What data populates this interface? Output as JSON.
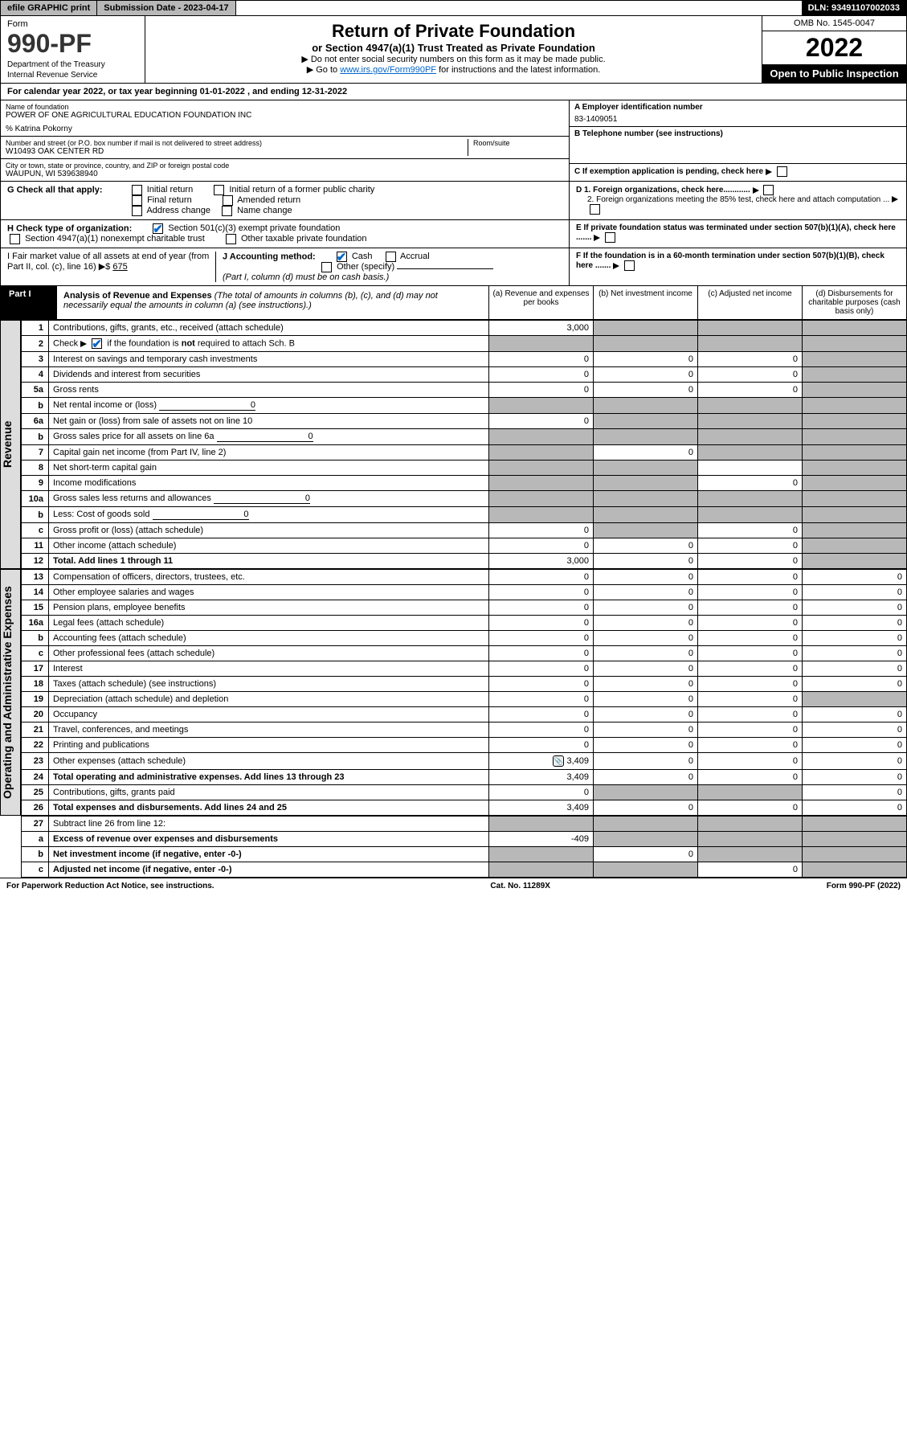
{
  "top": {
    "efile": "efile GRAPHIC print",
    "subdate_label": "Submission Date - 2023-04-17",
    "dln": "DLN: 93491107002033"
  },
  "header": {
    "form_word": "Form",
    "form_num": "990-PF",
    "dept": "Department of the Treasury",
    "irs": "Internal Revenue Service",
    "title": "Return of Private Foundation",
    "subtitle": "or Section 4947(a)(1) Trust Treated as Private Foundation",
    "note1": "▶ Do not enter social security numbers on this form as it may be made public.",
    "note2_pre": "▶ Go to ",
    "note2_link": "www.irs.gov/Form990PF",
    "note2_post": " for instructions and the latest information.",
    "omb": "OMB No. 1545-0047",
    "year": "2022",
    "open": "Open to Public Inspection"
  },
  "calendar": "For calendar year 2022, or tax year beginning 01-01-2022                        , and ending 12-31-2022",
  "info": {
    "name_label": "Name of foundation",
    "name": "POWER OF ONE AGRICULTURAL EDUCATION FOUNDATION INC",
    "attn": "% Katrina Pokorny",
    "addr_label": "Number and street (or P.O. box number if mail is not delivered to street address)",
    "addr": "W10493 OAK CENTER RD",
    "room_label": "Room/suite",
    "city_label": "City or town, state or province, country, and ZIP or foreign postal code",
    "city": "WAUPUN, WI  539638940",
    "ein_label": "A Employer identification number",
    "ein": "83-1409051",
    "tel_label": "B Telephone number (see instructions)",
    "c_label": "C If exemption application is pending, check here",
    "d1": "D 1. Foreign organizations, check here............",
    "d2": "2. Foreign organizations meeting the 85% test, check here and attach computation ...",
    "e_label": "E  If private foundation status was terminated under section 507(b)(1)(A), check here .......",
    "f_label": "F  If the foundation is in a 60-month termination under section 507(b)(1)(B), check here .......",
    "g_label": "G Check all that apply:",
    "g_opts": [
      "Initial return",
      "Initial return of a former public charity",
      "Final return",
      "Amended return",
      "Address change",
      "Name change"
    ],
    "h_label": "H Check type of organization:",
    "h1": "Section 501(c)(3) exempt private foundation",
    "h2": "Section 4947(a)(1) nonexempt charitable trust",
    "h3": "Other taxable private foundation",
    "i_label": "I Fair market value of all assets at end of year (from Part II, col. (c), line 16) ▶$",
    "i_val": "675",
    "j_label": "J Accounting method:",
    "j_cash": "Cash",
    "j_accr": "Accrual",
    "j_other": "Other (specify)",
    "j_note": "(Part I, column (d) must be on cash basis.)"
  },
  "part1": {
    "label": "Part I",
    "title": "Analysis of Revenue and Expenses",
    "title_note": " (The total of amounts in columns (b), (c), and (d) may not necessarily equal the amounts in column (a) (see instructions).)",
    "col_a": "(a)   Revenue and expenses per books",
    "col_b": "(b)   Net investment income",
    "col_c": "(c)   Adjusted net income",
    "col_d": "(d)   Disbursements for charitable purposes (cash basis only)"
  },
  "sections": {
    "revenue": "Revenue",
    "expenses": "Operating and Administrative Expenses"
  },
  "rows": [
    {
      "n": "1",
      "d": "Contributions, gifts, grants, etc., received (attach schedule)",
      "a": "3,000",
      "b": "",
      "c": "",
      "dd": "",
      "bs": true,
      "cs": true,
      "ds": true
    },
    {
      "n": "2",
      "d": "Check ▶ ☑ if the foundation is not required to attach Sch. B",
      "a": "",
      "b": "",
      "c": "",
      "dd": "",
      "as": true,
      "bs": true,
      "cs": true,
      "ds": true,
      "chk": true
    },
    {
      "n": "3",
      "d": "Interest on savings and temporary cash investments",
      "a": "0",
      "b": "0",
      "c": "0",
      "dd": "",
      "ds": true
    },
    {
      "n": "4",
      "d": "Dividends and interest from securities",
      "a": "0",
      "b": "0",
      "c": "0",
      "dd": "",
      "ds": true
    },
    {
      "n": "5a",
      "d": "Gross rents",
      "a": "0",
      "b": "0",
      "c": "0",
      "dd": "",
      "ds": true
    },
    {
      "n": "b",
      "d": "Net rental income or (loss)",
      "a": "",
      "b": "",
      "c": "",
      "dd": "",
      "inline": "0",
      "as": true,
      "bs": true,
      "cs": true,
      "ds": true
    },
    {
      "n": "6a",
      "d": "Net gain or (loss) from sale of assets not on line 10",
      "a": "0",
      "b": "",
      "c": "",
      "dd": "",
      "bs": true,
      "cs": true,
      "ds": true
    },
    {
      "n": "b",
      "d": "Gross sales price for all assets on line 6a",
      "a": "",
      "b": "",
      "c": "",
      "dd": "",
      "inline": "0",
      "as": true,
      "bs": true,
      "cs": true,
      "ds": true
    },
    {
      "n": "7",
      "d": "Capital gain net income (from Part IV, line 2)",
      "a": "",
      "b": "0",
      "c": "",
      "dd": "",
      "as": true,
      "cs": true,
      "ds": true
    },
    {
      "n": "8",
      "d": "Net short-term capital gain",
      "a": "",
      "b": "",
      "c": "",
      "dd": "",
      "as": true,
      "bs": true,
      "ds": true
    },
    {
      "n": "9",
      "d": "Income modifications",
      "a": "",
      "b": "",
      "c": "0",
      "dd": "",
      "as": true,
      "bs": true,
      "ds": true
    },
    {
      "n": "10a",
      "d": "Gross sales less returns and allowances",
      "a": "",
      "b": "",
      "c": "",
      "dd": "",
      "inline": "0",
      "as": true,
      "bs": true,
      "cs": true,
      "ds": true
    },
    {
      "n": "b",
      "d": "Less: Cost of goods sold",
      "a": "",
      "b": "",
      "c": "",
      "dd": "",
      "inline": "0",
      "as": true,
      "bs": true,
      "cs": true,
      "ds": true
    },
    {
      "n": "c",
      "d": "Gross profit or (loss) (attach schedule)",
      "a": "0",
      "b": "",
      "c": "0",
      "dd": "",
      "bs": true,
      "ds": true
    },
    {
      "n": "11",
      "d": "Other income (attach schedule)",
      "a": "0",
      "b": "0",
      "c": "0",
      "dd": "",
      "ds": true
    },
    {
      "n": "12",
      "d": "Total. Add lines 1 through 11",
      "a": "3,000",
      "b": "0",
      "c": "0",
      "dd": "",
      "bold": true,
      "ds": true
    }
  ],
  "exp_rows": [
    {
      "n": "13",
      "d": "Compensation of officers, directors, trustees, etc.",
      "a": "0",
      "b": "0",
      "c": "0",
      "dd": "0"
    },
    {
      "n": "14",
      "d": "Other employee salaries and wages",
      "a": "0",
      "b": "0",
      "c": "0",
      "dd": "0"
    },
    {
      "n": "15",
      "d": "Pension plans, employee benefits",
      "a": "0",
      "b": "0",
      "c": "0",
      "dd": "0"
    },
    {
      "n": "16a",
      "d": "Legal fees (attach schedule)",
      "a": "0",
      "b": "0",
      "c": "0",
      "dd": "0"
    },
    {
      "n": "b",
      "d": "Accounting fees (attach schedule)",
      "a": "0",
      "b": "0",
      "c": "0",
      "dd": "0"
    },
    {
      "n": "c",
      "d": "Other professional fees (attach schedule)",
      "a": "0",
      "b": "0",
      "c": "0",
      "dd": "0"
    },
    {
      "n": "17",
      "d": "Interest",
      "a": "0",
      "b": "0",
      "c": "0",
      "dd": "0"
    },
    {
      "n": "18",
      "d": "Taxes (attach schedule) (see instructions)",
      "a": "0",
      "b": "0",
      "c": "0",
      "dd": "0"
    },
    {
      "n": "19",
      "d": "Depreciation (attach schedule) and depletion",
      "a": "0",
      "b": "0",
      "c": "0",
      "dd": "",
      "ds": true
    },
    {
      "n": "20",
      "d": "Occupancy",
      "a": "0",
      "b": "0",
      "c": "0",
      "dd": "0"
    },
    {
      "n": "21",
      "d": "Travel, conferences, and meetings",
      "a": "0",
      "b": "0",
      "c": "0",
      "dd": "0"
    },
    {
      "n": "22",
      "d": "Printing and publications",
      "a": "0",
      "b": "0",
      "c": "0",
      "dd": "0"
    },
    {
      "n": "23",
      "d": "Other expenses (attach schedule)",
      "a": "3,409",
      "b": "0",
      "c": "0",
      "dd": "0",
      "icon": true
    },
    {
      "n": "24",
      "d": "Total operating and administrative expenses. Add lines 13 through 23",
      "a": "3,409",
      "b": "0",
      "c": "0",
      "dd": "0",
      "bold": true
    },
    {
      "n": "25",
      "d": "Contributions, gifts, grants paid",
      "a": "0",
      "b": "",
      "c": "",
      "dd": "0",
      "bs": true,
      "cs": true
    },
    {
      "n": "26",
      "d": "Total expenses and disbursements. Add lines 24 and 25",
      "a": "3,409",
      "b": "0",
      "c": "0",
      "dd": "0",
      "bold": true
    }
  ],
  "sub_rows": [
    {
      "n": "27",
      "d": "Subtract line 26 from line 12:",
      "a": "",
      "b": "",
      "c": "",
      "dd": "",
      "as": true,
      "bs": true,
      "cs": true,
      "ds": true
    },
    {
      "n": "a",
      "d": "Excess of revenue over expenses and disbursements",
      "a": "-409",
      "b": "",
      "c": "",
      "dd": "",
      "bold": true,
      "bs": true,
      "cs": true,
      "ds": true
    },
    {
      "n": "b",
      "d": "Net investment income (if negative, enter -0-)",
      "a": "",
      "b": "0",
      "c": "",
      "dd": "",
      "bold": true,
      "as": true,
      "cs": true,
      "ds": true
    },
    {
      "n": "c",
      "d": "Adjusted net income (if negative, enter -0-)",
      "a": "",
      "b": "",
      "c": "0",
      "dd": "",
      "bold": true,
      "as": true,
      "bs": true,
      "ds": true
    }
  ],
  "footer": {
    "left": "For Paperwork Reduction Act Notice, see instructions.",
    "mid": "Cat. No. 11289X",
    "right": "Form 990-PF (2022)"
  }
}
